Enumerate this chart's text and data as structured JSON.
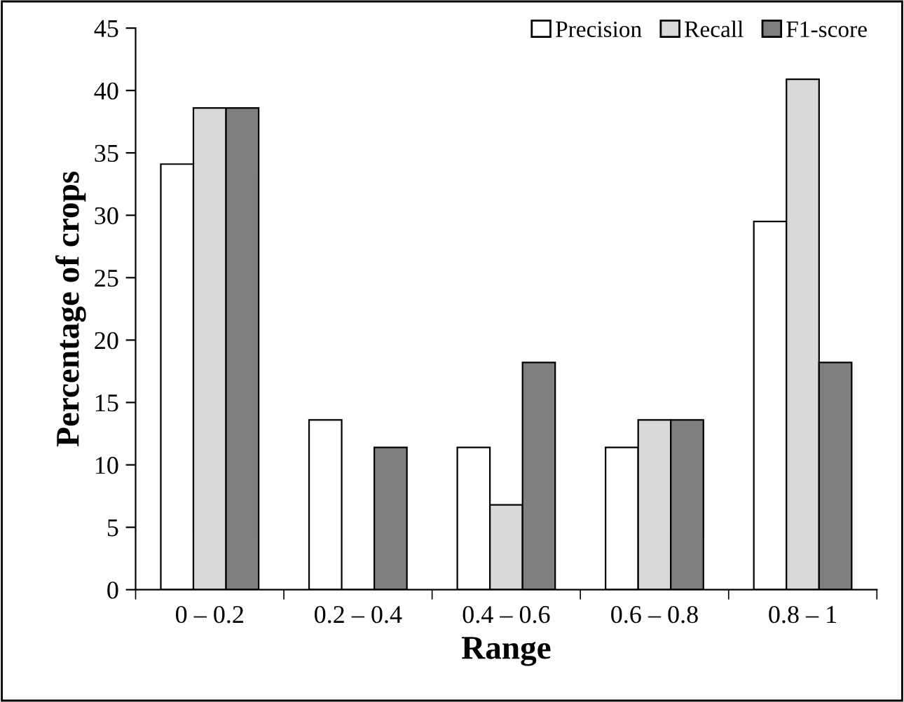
{
  "chart_data": {
    "type": "bar",
    "xlabel": "Range",
    "ylabel": "Percentage of crops",
    "categories": [
      "0 – 0.2",
      "0.2 – 0.4",
      "0.4 – 0.6",
      "0.6 – 0.8",
      "0.8 – 1"
    ],
    "series": [
      {
        "name": "Precision",
        "color": "#ffffff",
        "values": [
          34.1,
          13.6,
          11.4,
          11.4,
          29.5
        ]
      },
      {
        "name": "Recall",
        "color": "#d9d9d9",
        "values": [
          38.6,
          0,
          6.8,
          13.6,
          40.9
        ]
      },
      {
        "name": "F1-score",
        "color": "#7f7f7f",
        "values": [
          38.6,
          11.4,
          18.2,
          13.6,
          18.2
        ]
      }
    ],
    "ylim": [
      0,
      45
    ],
    "yticks": [
      0,
      5,
      10,
      15,
      20,
      25,
      30,
      35,
      40,
      45
    ],
    "grid": false,
    "legend": "top right"
  }
}
